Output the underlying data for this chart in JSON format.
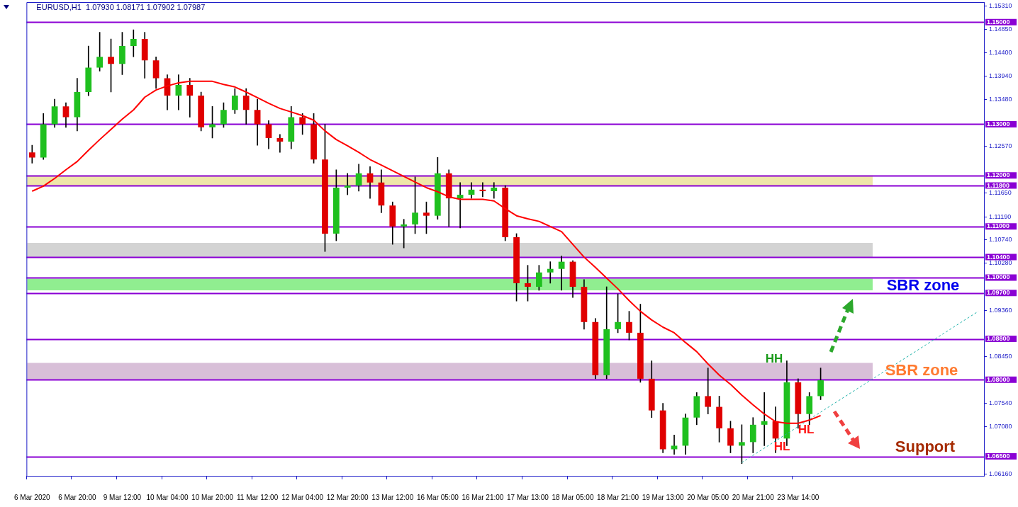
{
  "chart_data": {
    "type": "candlestick",
    "title": "EURUSD,H1  1.07930 1.08171 1.07902 1.07987",
    "categories": [
      "6 Mar 2020",
      null,
      null,
      null,
      "6 Mar 20:00",
      null,
      null,
      null,
      "9 Mar 12:00",
      null,
      null,
      null,
      "10 Mar 04:00",
      null,
      null,
      null,
      "10 Mar 20:00",
      null,
      null,
      null,
      "11 Mar 12:00",
      null,
      null,
      null,
      "12 Mar 04:00",
      null,
      null,
      null,
      "12 Mar 20:00",
      null,
      null,
      null,
      "13 Mar 12:00",
      null,
      null,
      null,
      "16 Mar 05:00",
      null,
      null,
      null,
      "16 Mar 21:00",
      null,
      null,
      null,
      "17 Mar 13:00",
      null,
      null,
      null,
      "18 Mar 05:00",
      null,
      null,
      null,
      "18 Mar 21:00",
      null,
      null,
      null,
      "19 Mar 13:00",
      null,
      null,
      null,
      "20 Mar 05:00",
      null,
      null,
      null,
      "20 Mar 21:00",
      null,
      null,
      null,
      "23 Mar 14:00",
      null,
      null,
      null,
      null,
      null,
      null,
      null,
      null,
      null,
      null,
      null,
      null,
      null,
      null,
      null,
      null
    ],
    "ohlc": [
      [
        1.1245,
        1.1259,
        1.1224,
        1.1235
      ],
      [
        1.1235,
        1.1321,
        1.1231,
        1.13
      ],
      [
        1.13,
        1.1349,
        1.1294,
        1.1335
      ],
      [
        1.1335,
        1.1342,
        1.1294,
        1.1314
      ],
      [
        1.1314,
        1.139,
        1.1287,
        1.1363
      ],
      [
        1.1363,
        1.1453,
        1.1356,
        1.1411
      ],
      [
        1.1411,
        1.148,
        1.1404,
        1.1432
      ],
      [
        1.1432,
        1.1467,
        1.1363,
        1.1418
      ],
      [
        1.1418,
        1.148,
        1.1397,
        1.1453
      ],
      [
        1.1453,
        1.1485,
        1.1432,
        1.1467
      ],
      [
        1.1467,
        1.148,
        1.139,
        1.1425
      ],
      [
        1.1425,
        1.1432,
        1.137,
        1.139
      ],
      [
        1.139,
        1.1397,
        1.1328,
        1.1356
      ],
      [
        1.1356,
        1.1397,
        1.1328,
        1.1377
      ],
      [
        1.1377,
        1.139,
        1.1314,
        1.1356
      ],
      [
        1.1356,
        1.1363,
        1.1287,
        1.1294
      ],
      [
        1.1294,
        1.1335,
        1.1273,
        1.13
      ],
      [
        1.13,
        1.1342,
        1.1294,
        1.1328
      ],
      [
        1.1328,
        1.137,
        1.1321,
        1.1356
      ],
      [
        1.1356,
        1.137,
        1.13,
        1.1328
      ],
      [
        1.1328,
        1.1349,
        1.1259,
        1.13
      ],
      [
        1.13,
        1.1307,
        1.1252,
        1.1273
      ],
      [
        1.1273,
        1.128,
        1.1245,
        1.1266
      ],
      [
        1.1266,
        1.1335,
        1.1252,
        1.1314
      ],
      [
        1.1314,
        1.1321,
        1.128,
        1.13
      ],
      [
        1.13,
        1.1321,
        1.1224,
        1.1231
      ],
      [
        1.1231,
        1.13,
        1.1051,
        1.1086
      ],
      [
        1.1086,
        1.1211,
        1.1072,
        1.1176
      ],
      [
        1.1176,
        1.1204,
        1.1162,
        1.118
      ],
      [
        1.118,
        1.1222,
        1.1169,
        1.1204
      ],
      [
        1.1204,
        1.1217,
        1.1155,
        1.1186
      ],
      [
        1.1186,
        1.1211,
        1.1127,
        1.1141
      ],
      [
        1.1141,
        1.1148,
        1.1065,
        1.11
      ],
      [
        1.11,
        1.1114,
        1.1058,
        1.1104
      ],
      [
        1.1104,
        1.1197,
        1.1086,
        1.1127
      ],
      [
        1.1127,
        1.1148,
        1.1086,
        1.1121
      ],
      [
        1.1121,
        1.1235,
        1.1114,
        1.1204
      ],
      [
        1.1204,
        1.1211,
        1.11,
        1.1155
      ],
      [
        1.1155,
        1.1186,
        1.1097,
        1.1162
      ],
      [
        1.1162,
        1.1186,
        1.1155,
        1.1172
      ],
      [
        1.1172,
        1.1186,
        1.1158,
        1.1169
      ],
      [
        1.1169,
        1.1186,
        1.1155,
        1.1176
      ],
      [
        1.1176,
        1.118,
        1.1072,
        1.1079
      ],
      [
        1.1079,
        1.1086,
        1.0954,
        1.0989
      ],
      [
        1.0989,
        1.1024,
        1.0954,
        1.0982
      ],
      [
        1.0982,
        1.1024,
        1.0975,
        1.101
      ],
      [
        1.101,
        1.1031,
        1.0989,
        1.1017
      ],
      [
        1.1017,
        1.1042,
        1.0975,
        1.1031
      ],
      [
        1.1031,
        1.1033,
        1.0961,
        1.0982
      ],
      [
        1.0982,
        1.0996,
        1.0899,
        1.0913
      ],
      [
        1.0913,
        1.092,
        1.0802,
        1.0809
      ],
      [
        1.0809,
        1.0982,
        1.0802,
        1.0899
      ],
      [
        1.0899,
        1.0968,
        1.0892,
        1.0913
      ],
      [
        1.0913,
        1.0934,
        1.0878,
        1.0892
      ],
      [
        1.0892,
        1.0948,
        1.0795,
        1.0802
      ],
      [
        1.0802,
        1.0837,
        1.0726,
        1.074
      ],
      [
        1.074,
        1.0754,
        1.0657,
        1.0664
      ],
      [
        1.0664,
        1.0692,
        1.0654,
        1.0671
      ],
      [
        1.0671,
        1.0733,
        1.0654,
        1.0726
      ],
      [
        1.0726,
        1.0775,
        1.0712,
        1.0768
      ],
      [
        1.0768,
        1.0823,
        1.0733,
        1.0747
      ],
      [
        1.0747,
        1.0768,
        1.0678,
        1.0705
      ],
      [
        1.0705,
        1.0719,
        1.0657,
        1.0671
      ],
      [
        1.0671,
        1.0712,
        1.0636,
        1.0678
      ],
      [
        1.0678,
        1.0726,
        1.0657,
        1.0712
      ],
      [
        1.0712,
        1.0775,
        1.0671,
        1.0719
      ],
      [
        1.0719,
        1.0747,
        1.0657,
        1.0685
      ],
      [
        1.0685,
        1.0837,
        1.0671,
        1.0795
      ],
      [
        1.0795,
        1.0802,
        1.0705,
        1.0733
      ],
      [
        1.0733,
        1.0775,
        1.0712,
        1.0768
      ],
      [
        1.0768,
        1.0823,
        1.0761,
        1.0799
      ],
      null,
      null,
      null,
      null,
      null,
      null,
      null,
      null,
      null,
      null,
      null,
      null,
      null,
      null
    ],
    "colors": [
      "#e00000",
      "#1fc01f",
      "#1fc01f",
      "#e00000",
      "#1fc01f",
      "#1fc01f",
      "#1fc01f",
      "#e00000",
      "#1fc01f",
      "#1fc01f",
      "#e00000",
      "#e00000",
      "#e00000",
      "#1fc01f",
      "#e00000",
      "#e00000",
      "#1fc01f",
      "#1fc01f",
      "#1fc01f",
      "#e00000",
      "#e00000",
      "#e00000",
      "#e00000",
      "#1fc01f",
      "#e00000",
      "#e00000",
      "#e00000",
      "#1fc01f",
      "#1fc01f",
      "#1fc01f",
      "#e00000",
      "#e00000",
      "#e00000",
      "#1fc01f",
      "#1fc01f",
      "#e00000",
      "#1fc01f",
      "#e00000",
      "#1fc01f",
      "#1fc01f",
      "#e00000",
      "#1fc01f",
      "#e00000",
      "#e00000",
      "#e00000",
      "#1fc01f",
      "#1fc01f",
      "#1fc01f",
      "#e00000",
      "#e00000",
      "#e00000",
      "#1fc01f",
      "#1fc01f",
      "#e00000",
      "#e00000",
      "#e00000",
      "#e00000",
      "#1fc01f",
      "#1fc01f",
      "#1fc01f",
      "#e00000",
      "#e00000",
      "#e00000",
      "#1fc01f",
      "#1fc01f",
      "#1fc01f",
      "#e00000",
      "#1fc01f",
      "#e00000",
      "#1fc01f",
      "#1fc01f",
      null,
      null,
      null,
      null,
      null,
      null,
      null,
      null,
      null,
      null,
      null,
      null,
      null,
      null
    ],
    "series": [
      {
        "type": "line",
        "color": "#ff0000",
        "line_style": "solid",
        "values": [
          1.1169,
          1.1179,
          1.1194,
          1.1211,
          1.1227,
          1.1249,
          1.127,
          1.129,
          1.131,
          1.1328,
          1.1353,
          1.1367,
          1.1375,
          1.1381,
          1.1384,
          1.1384,
          1.1384,
          1.1378,
          1.1373,
          1.1363,
          1.1352,
          1.1341,
          1.1331,
          1.1324,
          1.1317,
          1.1308,
          1.1287,
          1.127,
          1.1258,
          1.1245,
          1.1231,
          1.122,
          1.1209,
          1.1198,
          1.1187,
          1.1176,
          1.1168,
          1.1158,
          1.1153,
          1.1153,
          1.1153,
          1.115,
          1.1135,
          1.1121,
          1.1115,
          1.111,
          1.11,
          1.109,
          1.1065,
          1.104,
          1.102,
          1.0999,
          1.0978,
          1.0955,
          1.0934,
          1.0917,
          1.0903,
          1.0892,
          1.0873,
          1.0855,
          1.0831,
          1.0809,
          1.0791,
          1.077,
          1.0751,
          1.0733,
          1.0718,
          1.0715,
          1.0715,
          1.0721,
          1.073,
          null,
          null,
          null,
          null,
          null,
          null,
          null,
          null,
          null,
          null,
          null,
          null,
          null,
          null
        ]
      },
      {
        "type": "line",
        "color": "#20b2aa",
        "line_style": "dashed",
        "values": [
          null,
          null,
          null,
          null,
          null,
          null,
          null,
          null,
          null,
          null,
          null,
          null,
          null,
          null,
          null,
          null,
          null,
          null,
          null,
          null,
          null,
          null,
          null,
          null,
          null,
          null,
          null,
          null,
          null,
          null,
          null,
          null,
          null,
          null,
          null,
          null,
          null,
          null,
          null,
          null,
          null,
          null,
          null,
          null,
          null,
          null,
          null,
          null,
          null,
          null,
          null,
          null,
          null,
          null,
          null,
          null,
          null,
          null,
          null,
          null,
          null,
          null,
          null,
          1.0638,
          null,
          null,
          null,
          null,
          null,
          null,
          null,
          null,
          null,
          null,
          null,
          null,
          null,
          null,
          null,
          null,
          null,
          null,
          null,
          null,
          1.0934
        ]
      }
    ],
    "marker": "none",
    "ylim": [
      1.0612,
      1.1539
    ],
    "yticks": [
      {
        "value": 1.1531,
        "label": "1.15310"
      },
      {
        "value": 1.1485,
        "label": "1.14850"
      },
      {
        "value": 1.144,
        "label": "1.14400"
      },
      {
        "value": 1.1394,
        "label": "1.13940"
      },
      {
        "value": 1.1348,
        "label": "1.13480"
      },
      {
        "value": 1.1257,
        "label": "1.12570"
      },
      {
        "value": 1.1165,
        "label": "1.11650"
      },
      {
        "value": 1.1119,
        "label": "1.11190"
      },
      {
        "value": 1.1074,
        "label": "1.10740"
      },
      {
        "value": 1.1028,
        "label": "1.10280"
      },
      {
        "value": 1.0936,
        "label": "1.09360"
      },
      {
        "value": 1.0845,
        "label": "1.08450"
      },
      {
        "value": 1.0754,
        "label": "1.07540"
      },
      {
        "value": 1.0708,
        "label": "1.07080"
      },
      {
        "value": 1.0616,
        "label": "1.06160"
      }
    ],
    "ref_lines": [
      {
        "axis": "y",
        "value": 1.15,
        "label": "1.15000",
        "color": "#8a00d4"
      },
      {
        "axis": "y",
        "value": 1.13,
        "label": "1.13000",
        "color": "#8a00d4"
      },
      {
        "axis": "y",
        "value": 1.12,
        "label": "1.12000",
        "color": "#8a00d4"
      },
      {
        "axis": "y",
        "value": 1.118,
        "label": "1.11800",
        "color": "#8a00d4"
      },
      {
        "axis": "y",
        "value": 1.11,
        "label": "1.11000",
        "color": "#8a00d4"
      },
      {
        "axis": "y",
        "value": 1.104,
        "label": "1.10400",
        "color": "#8a00d4"
      },
      {
        "axis": "y",
        "value": 1.1,
        "label": "1.10000",
        "color": "#8a00d4"
      },
      {
        "axis": "y",
        "value": 1.097,
        "label": "1.09700",
        "color": "#8a00d4"
      },
      {
        "axis": "y",
        "value": 1.088,
        "label": "1.08800",
        "color": "#8a00d4"
      },
      {
        "axis": "y",
        "value": 1.08,
        "label": "1.08000",
        "color": "#8a00d4"
      },
      {
        "axis": "y",
        "value": 1.065,
        "label": "1.06500",
        "color": "#8a00d4"
      }
    ],
    "bands": [
      {
        "axis": "y",
        "from": 1.118,
        "to": 1.12,
        "color": "#efe6a9"
      },
      {
        "axis": "y",
        "from": 1.104,
        "to": 1.1068,
        "color": "#d3d3d3"
      },
      {
        "axis": "y",
        "from": 1.0975,
        "to": 1.0998,
        "color": "#90ee90"
      },
      {
        "axis": "y",
        "from": 1.08,
        "to": 1.0833,
        "color": "#d8bfd8"
      }
    ],
    "annotations": [
      "SBR zone",
      "SBR zone",
      "Support",
      "HH",
      "HL",
      "HL"
    ]
  }
}
